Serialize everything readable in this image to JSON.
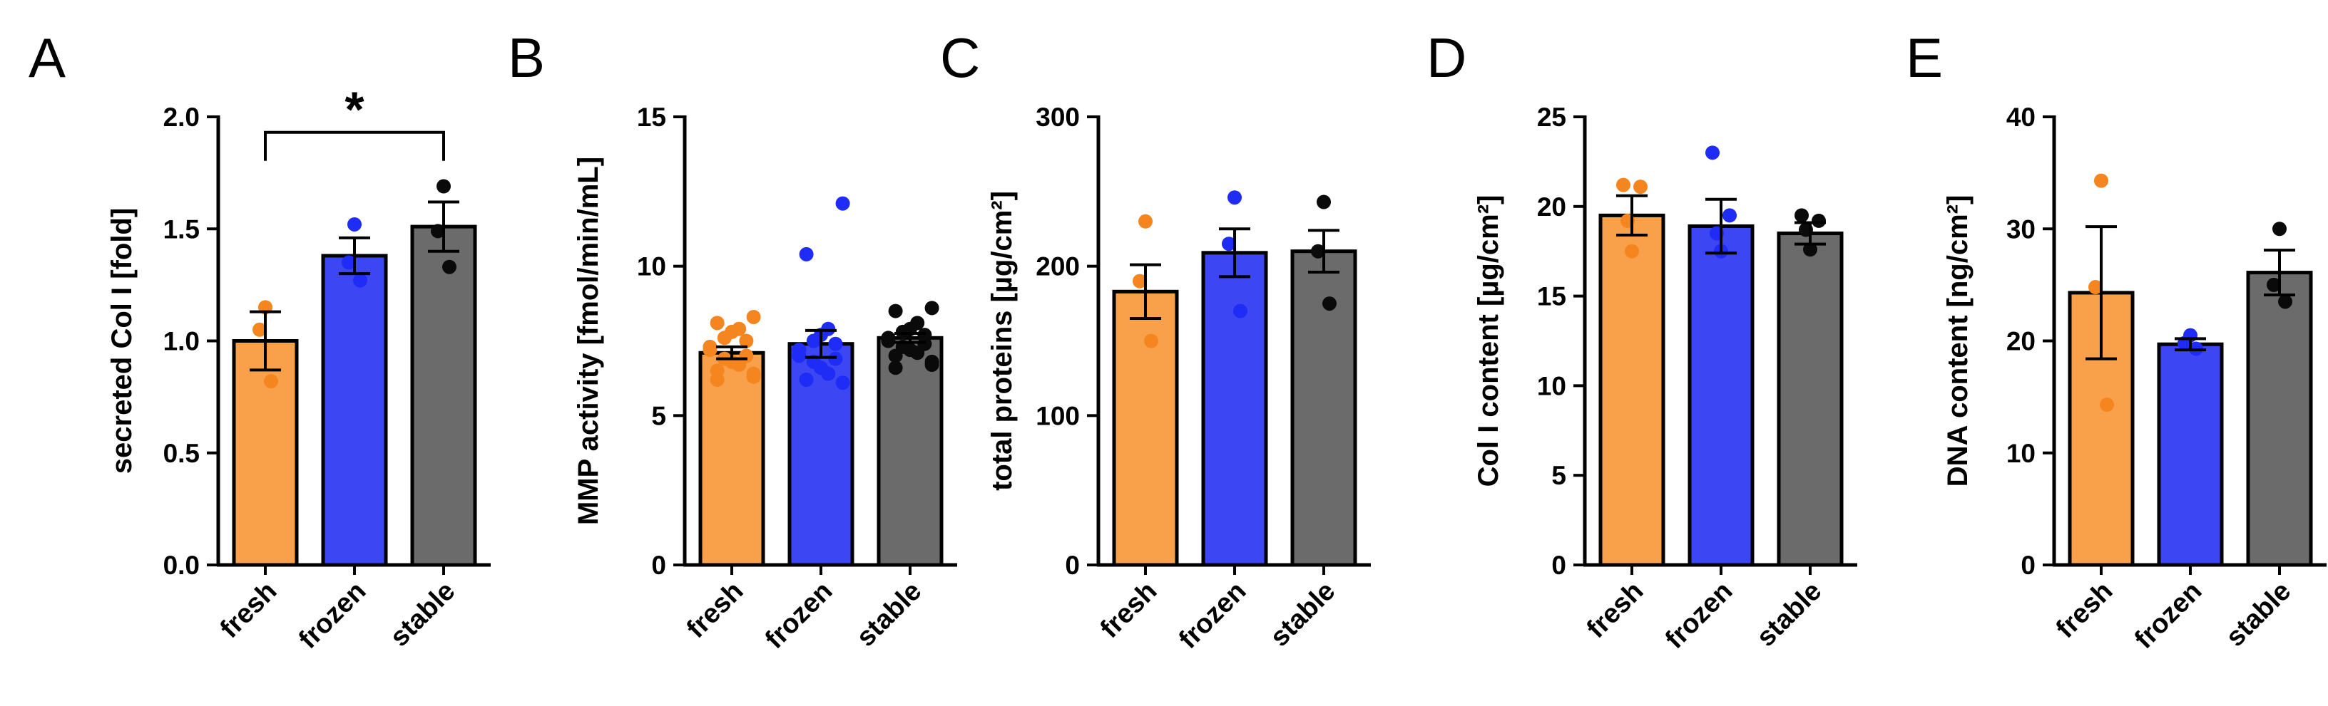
{
  "colors": {
    "fresh_fill": "#F9A04A",
    "fresh_dot": "#F5851F",
    "frozen_fill": "#3C46F2",
    "frozen_dot": "#1E2CF5",
    "stable_fill": "#6B6B6B",
    "stable_dot": "#0A0A0A",
    "axis": "#000000"
  },
  "chart_data": [
    {
      "panel": "A",
      "type": "bar",
      "categories": [
        "fresh",
        "frozen",
        "stable"
      ],
      "values": [
        1.0,
        1.38,
        1.51
      ],
      "sem": [
        0.13,
        0.08,
        0.11
      ],
      "points": [
        [
          1.15,
          1.05,
          0.82
        ],
        [
          1.52,
          1.35,
          1.27
        ],
        [
          1.69,
          1.49,
          1.33
        ]
      ],
      "ylabel": "secreted Col I [fold]",
      "ylim": [
        0,
        2.0
      ],
      "yticks": [
        0,
        0.5,
        1.0,
        1.5,
        2.0
      ],
      "ytick_labels": [
        "0.0",
        "0.5",
        "1.0",
        "1.5",
        "2.0"
      ],
      "significance": {
        "from": 0,
        "to": 2,
        "y": 1.95,
        "label": "*"
      }
    },
    {
      "panel": "B",
      "type": "bar",
      "categories": [
        "fresh",
        "frozen",
        "stable"
      ],
      "values": [
        7.1,
        7.4,
        7.6
      ],
      "sem": [
        0.2,
        0.45,
        0.15
      ],
      "points": [
        [
          8.3,
          8.1,
          7.9,
          7.8,
          7.6,
          7.5,
          7.3,
          7.2,
          7.0,
          6.9,
          6.8,
          6.7,
          6.5,
          6.4,
          6.3,
          6.2
        ],
        [
          12.1,
          10.4,
          7.9,
          7.7,
          7.5,
          7.4,
          7.2,
          7.0,
          6.9,
          6.8,
          6.6,
          6.4,
          6.2,
          6.1
        ],
        [
          8.6,
          8.5,
          8.1,
          7.9,
          7.8,
          7.7,
          7.6,
          7.5,
          7.4,
          7.3,
          7.2,
          7.1,
          7.0,
          6.8,
          6.7,
          6.6
        ]
      ],
      "ylabel": "MMP activity [fmol/min/mL]",
      "ylim": [
        0,
        15
      ],
      "yticks": [
        0,
        5,
        10,
        15
      ],
      "ytick_labels": [
        "0",
        "5",
        "10",
        "15"
      ]
    },
    {
      "panel": "C",
      "type": "bar",
      "categories": [
        "fresh",
        "frozen",
        "stable"
      ],
      "values": [
        183,
        209,
        210
      ],
      "sem": [
        18,
        16,
        14
      ],
      "points": [
        [
          230,
          190,
          150
        ],
        [
          246,
          215,
          170
        ],
        [
          243,
          210,
          175
        ]
      ],
      "ylabel": "total proteins [µg/cm²]",
      "ylim": [
        0,
        300
      ],
      "yticks": [
        0,
        100,
        200,
        300
      ],
      "ytick_labels": [
        "0",
        "100",
        "200",
        "300"
      ]
    },
    {
      "panel": "D",
      "type": "bar",
      "categories": [
        "fresh",
        "frozen",
        "stable"
      ],
      "values": [
        19.5,
        18.9,
        18.5
      ],
      "sem": [
        1.1,
        1.5,
        0.6
      ],
      "points": [
        [
          21.2,
          21.1,
          17.5,
          19.2
        ],
        [
          23.0,
          19.5,
          17.5,
          18.5
        ],
        [
          19.5,
          19.2,
          17.6,
          18.7
        ]
      ],
      "ylabel": "Col I content [µg/cm²]",
      "ylim": [
        0,
        25
      ],
      "yticks": [
        0,
        5,
        10,
        15,
        20,
        25
      ],
      "ytick_labels": [
        "0",
        "5",
        "10",
        "15",
        "20",
        "25"
      ]
    },
    {
      "panel": "E",
      "type": "bar",
      "categories": [
        "fresh",
        "frozen",
        "stable"
      ],
      "values": [
        24.3,
        19.7,
        26.1
      ],
      "sem": [
        5.9,
        0.5,
        2.0
      ],
      "points": [
        [
          34.3,
          24.8,
          14.3
        ],
        [
          20.5,
          19.8,
          19.3
        ],
        [
          30.0,
          25.0,
          23.5
        ]
      ],
      "ylabel": "DNA content [ng/cm²]",
      "ylim": [
        0,
        40
      ],
      "yticks": [
        0,
        10,
        20,
        30,
        40
      ],
      "ytick_labels": [
        "0",
        "10",
        "20",
        "30",
        "40"
      ]
    }
  ]
}
